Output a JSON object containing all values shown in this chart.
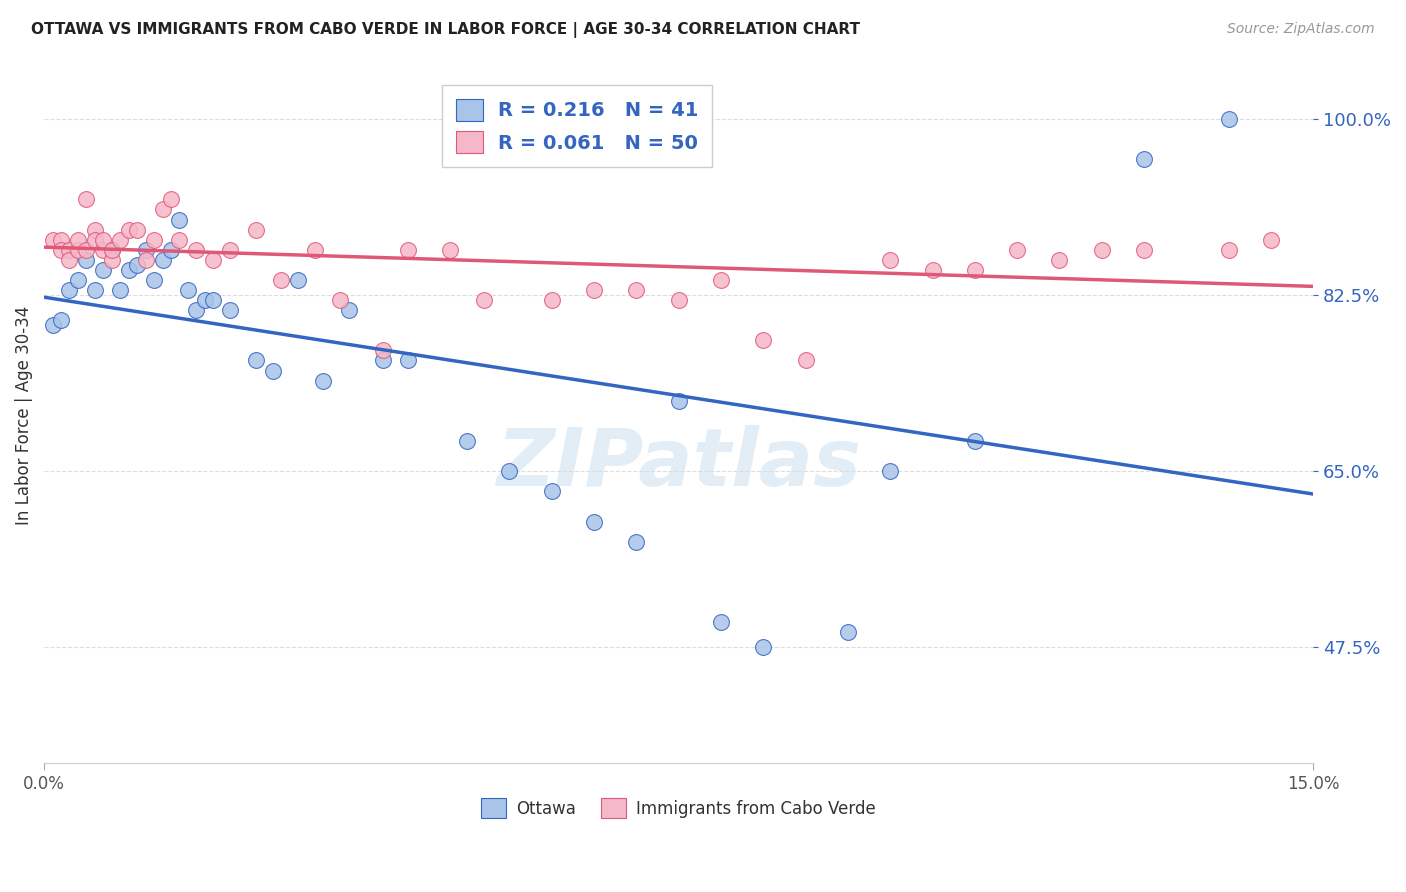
{
  "title": "OTTAWA VS IMMIGRANTS FROM CABO VERDE IN LABOR FORCE | AGE 30-34 CORRELATION CHART",
  "source": "Source: ZipAtlas.com",
  "ylabel": "In Labor Force | Age 30-34",
  "ytick_labels": [
    "47.5%",
    "65.0%",
    "82.5%",
    "100.0%"
  ],
  "ytick_values": [
    0.475,
    0.65,
    0.825,
    1.0
  ],
  "xlim": [
    0.0,
    0.15
  ],
  "ylim": [
    0.36,
    1.05
  ],
  "legend_ottawa_R": "0.216",
  "legend_ottawa_N": "41",
  "legend_cabo_R": "0.061",
  "legend_cabo_N": "50",
  "ottawa_color": "#a8c4e8",
  "cabo_color": "#f5b8c8",
  "trend_ottawa_color": "#3465c0",
  "trend_cabo_color": "#e05878",
  "background_color": "#ffffff",
  "grid_color": "#dddddd",
  "ottawa_x": [
    0.001,
    0.002,
    0.003,
    0.004,
    0.005,
    0.006,
    0.007,
    0.008,
    0.009,
    0.01,
    0.011,
    0.012,
    0.013,
    0.014,
    0.015,
    0.016,
    0.017,
    0.018,
    0.019,
    0.02,
    0.022,
    0.025,
    0.027,
    0.03,
    0.033,
    0.036,
    0.04,
    0.043,
    0.05,
    0.055,
    0.06,
    0.065,
    0.07,
    0.075,
    0.08,
    0.085,
    0.095,
    0.1,
    0.11,
    0.13,
    0.14
  ],
  "ottawa_y": [
    0.795,
    0.8,
    0.83,
    0.84,
    0.86,
    0.83,
    0.85,
    0.87,
    0.83,
    0.85,
    0.855,
    0.87,
    0.84,
    0.86,
    0.87,
    0.9,
    0.83,
    0.81,
    0.82,
    0.82,
    0.81,
    0.76,
    0.75,
    0.84,
    0.74,
    0.81,
    0.76,
    0.76,
    0.68,
    0.65,
    0.63,
    0.6,
    0.58,
    0.72,
    0.5,
    0.475,
    0.49,
    0.65,
    0.68,
    0.96,
    1.0
  ],
  "cabo_x": [
    0.001,
    0.002,
    0.002,
    0.003,
    0.003,
    0.004,
    0.004,
    0.005,
    0.005,
    0.006,
    0.006,
    0.007,
    0.007,
    0.008,
    0.008,
    0.009,
    0.01,
    0.011,
    0.012,
    0.013,
    0.014,
    0.015,
    0.016,
    0.018,
    0.02,
    0.022,
    0.025,
    0.028,
    0.032,
    0.035,
    0.04,
    0.043,
    0.048,
    0.052,
    0.06,
    0.065,
    0.07,
    0.075,
    0.08,
    0.085,
    0.09,
    0.1,
    0.105,
    0.11,
    0.115,
    0.12,
    0.125,
    0.13,
    0.14,
    0.145
  ],
  "cabo_y": [
    0.88,
    0.88,
    0.87,
    0.87,
    0.86,
    0.87,
    0.88,
    0.92,
    0.87,
    0.89,
    0.88,
    0.87,
    0.88,
    0.86,
    0.87,
    0.88,
    0.89,
    0.89,
    0.86,
    0.88,
    0.91,
    0.92,
    0.88,
    0.87,
    0.86,
    0.87,
    0.89,
    0.84,
    0.87,
    0.82,
    0.77,
    0.87,
    0.87,
    0.82,
    0.82,
    0.83,
    0.83,
    0.82,
    0.84,
    0.78,
    0.76,
    0.86,
    0.85,
    0.85,
    0.87,
    0.86,
    0.87,
    0.87,
    0.87,
    0.88
  ]
}
